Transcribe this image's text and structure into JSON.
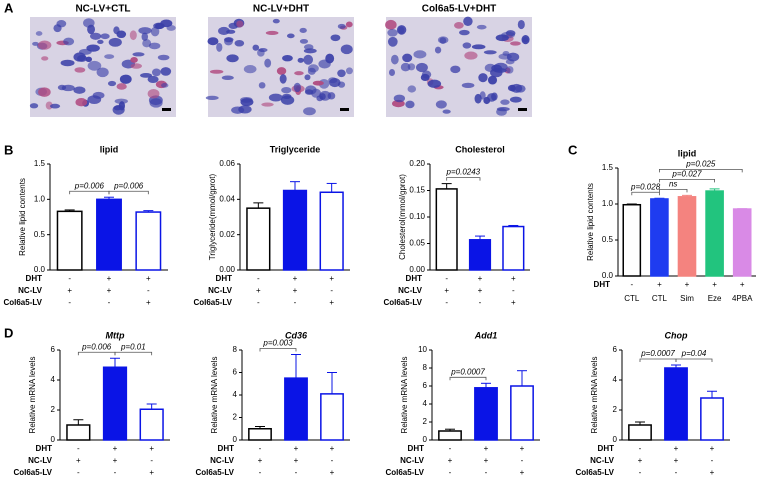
{
  "panels": [
    "A",
    "B",
    "C",
    "D"
  ],
  "micrographs": [
    {
      "title": "NC-LV+CTL"
    },
    {
      "title": "NC-LV+DHT"
    },
    {
      "title": "Col6a5-LV+DHT"
    }
  ],
  "chart_data": [
    {
      "type": "bar",
      "title": "lipid",
      "y_label": "Relative lipid contents",
      "values": [
        0.83,
        1.0,
        0.82
      ],
      "errors": [
        0.02,
        0.03,
        0.02
      ],
      "bar_styles": [
        {
          "fill": "#ffffff",
          "stroke": "#000000"
        },
        {
          "fill": "#0a14e6",
          "stroke": "#0a14e6"
        },
        {
          "fill": "#ffffff",
          "stroke": "#0a14e6"
        }
      ],
      "ylim": [
        0,
        1.5
      ],
      "yticks": [
        {
          "value": 0,
          "label": "0.0"
        },
        {
          "value": 0.5,
          "label": "0.5"
        },
        {
          "value": 1,
          "label": "1.0"
        },
        {
          "value": 1.5,
          "label": "1.5"
        }
      ],
      "conditions": [
        {
          "name": "DHT",
          "signs": [
            "-",
            "+",
            "+"
          ]
        },
        {
          "name": "NC-LV",
          "signs": [
            "+",
            "+",
            "-"
          ]
        },
        {
          "name": "Col6a5-LV",
          "signs": [
            "-",
            "-",
            "+"
          ]
        }
      ],
      "brackets": [
        {
          "label": "p=0.006",
          "from": 0,
          "to": 1
        },
        {
          "label": "p=0.006",
          "from": 1,
          "to": 2
        }
      ]
    },
    {
      "type": "bar",
      "title": "Triglyceride",
      "y_label": "Triglyceride(mmol/gprot)",
      "values": [
        0.035,
        0.045,
        0.044
      ],
      "errors": [
        0.003,
        0.005,
        0.005
      ],
      "bar_styles": [
        {
          "fill": "#ffffff",
          "stroke": "#000000"
        },
        {
          "fill": "#0a14e6",
          "stroke": "#0a14e6"
        },
        {
          "fill": "#ffffff",
          "stroke": "#0a14e6"
        }
      ],
      "ylim": [
        0,
        0.06
      ],
      "yticks": [
        {
          "value": 0,
          "label": "0.00"
        },
        {
          "value": 0.02,
          "label": "0.02"
        },
        {
          "value": 0.04,
          "label": "0.04"
        },
        {
          "value": 0.06,
          "label": "0.06"
        }
      ],
      "conditions": [
        {
          "name": "DHT",
          "signs": [
            "-",
            "+",
            "+"
          ]
        },
        {
          "name": "NC-LV",
          "signs": [
            "+",
            "+",
            "-"
          ]
        },
        {
          "name": "Col6a5-LV",
          "signs": [
            "-",
            "-",
            "+"
          ]
        }
      ],
      "brackets": []
    },
    {
      "type": "bar",
      "title": "Cholesterol",
      "y_label": "Cholesterol(mmol/gprot)",
      "values": [
        0.153,
        0.057,
        0.082
      ],
      "errors": [
        0.01,
        0.007,
        0.002
      ],
      "bar_styles": [
        {
          "fill": "#ffffff",
          "stroke": "#000000"
        },
        {
          "fill": "#0a14e6",
          "stroke": "#0a14e6"
        },
        {
          "fill": "#ffffff",
          "stroke": "#0a14e6"
        }
      ],
      "ylim": [
        0,
        0.2
      ],
      "yticks": [
        {
          "value": 0,
          "label": "0.00"
        },
        {
          "value": 0.05,
          "label": "0.05"
        },
        {
          "value": 0.1,
          "label": "0.10"
        },
        {
          "value": 0.15,
          "label": "0.15"
        },
        {
          "value": 0.2,
          "label": "0.20"
        }
      ],
      "conditions": [
        {
          "name": "DHT",
          "signs": [
            "-",
            "+",
            "+"
          ]
        },
        {
          "name": "NC-LV",
          "signs": [
            "+",
            "+",
            "-"
          ]
        },
        {
          "name": "Col6a5-LV",
          "signs": [
            "-",
            "-",
            "+"
          ]
        }
      ],
      "brackets": [
        {
          "label": "p=0.0243",
          "from": 0,
          "to": 1
        }
      ]
    },
    {
      "type": "bar",
      "title": "lipid",
      "y_label": "Relative lipid contents",
      "categories": [
        "CTL",
        "CTL",
        "Sim",
        "Eze",
        "4PBA"
      ],
      "values": [
        0.99,
        1.07,
        1.1,
        1.18,
        0.93
      ],
      "errors": [
        0.01,
        0.01,
        0.02,
        0.03,
        0.005
      ],
      "bar_styles": [
        {
          "fill": "#ffffff",
          "stroke": "#000000"
        },
        {
          "fill": "#1f3cf0",
          "stroke": "#1f3cf0"
        },
        {
          "fill": "#f4837f",
          "stroke": "#f4837f"
        },
        {
          "fill": "#22c47e",
          "stroke": "#22c47e"
        },
        {
          "fill": "#d98ae6",
          "stroke": "#d98ae6"
        }
      ],
      "ylim": [
        0,
        1.5
      ],
      "yticks": [
        {
          "value": 0,
          "label": "0.0"
        },
        {
          "value": 0.5,
          "label": "0.5"
        },
        {
          "value": 1,
          "label": "1.0"
        },
        {
          "value": 1.5,
          "label": "1.5"
        }
      ],
      "conditions": [
        {
          "name": "DHT",
          "signs": [
            "-",
            "+",
            "+",
            "+",
            "+"
          ]
        }
      ],
      "brackets": [
        {
          "label": "p=0.028",
          "from": 0,
          "to": 1
        },
        {
          "label": "ns",
          "from": 1,
          "to": 2
        },
        {
          "label": "p=0.027",
          "from": 1,
          "to": 3
        },
        {
          "label": "p=0.025",
          "from": 1,
          "to": 4
        }
      ]
    },
    {
      "type": "bar",
      "title": "Mttp",
      "italic": true,
      "y_label": "Relative mRNA levels",
      "values": [
        1.0,
        4.85,
        2.05
      ],
      "errors": [
        0.35,
        0.6,
        0.35
      ],
      "bar_styles": [
        {
          "fill": "#ffffff",
          "stroke": "#000000"
        },
        {
          "fill": "#0a14e6",
          "stroke": "#0a14e6"
        },
        {
          "fill": "#ffffff",
          "stroke": "#0a14e6"
        }
      ],
      "ylim": [
        0,
        6
      ],
      "yticks": [
        0,
        2,
        4,
        6
      ],
      "conditions": [
        {
          "name": "DHT",
          "signs": [
            "-",
            "+",
            "+"
          ]
        },
        {
          "name": "NC-LV",
          "signs": [
            "+",
            "+",
            "-"
          ]
        },
        {
          "name": "Col6a5-LV",
          "signs": [
            "-",
            "-",
            "+"
          ]
        }
      ],
      "brackets": [
        {
          "label": "p=0.006",
          "from": 0,
          "to": 1
        },
        {
          "label": "p=0.01",
          "from": 1,
          "to": 2
        }
      ]
    },
    {
      "type": "bar",
      "title": "Cd36",
      "italic": true,
      "y_label": "Relative mRNA levels",
      "values": [
        1.0,
        5.5,
        4.1
      ],
      "errors": [
        0.2,
        2.1,
        1.9
      ],
      "bar_styles": [
        {
          "fill": "#ffffff",
          "stroke": "#000000"
        },
        {
          "fill": "#0a14e6",
          "stroke": "#0a14e6"
        },
        {
          "fill": "#ffffff",
          "stroke": "#0a14e6"
        }
      ],
      "ylim": [
        0,
        8
      ],
      "yticks": [
        0,
        2,
        4,
        6,
        8
      ],
      "conditions": [
        {
          "name": "DHT",
          "signs": [
            "-",
            "+",
            "+"
          ]
        },
        {
          "name": "NC-LV",
          "signs": [
            "+",
            "+",
            "-"
          ]
        },
        {
          "name": "Col6a5-LV",
          "signs": [
            "-",
            "-",
            "+"
          ]
        }
      ],
      "brackets": [
        {
          "label": "p=0.003",
          "from": 0,
          "to": 1
        }
      ]
    },
    {
      "type": "bar",
      "title": "Add1",
      "italic": true,
      "y_label": "Relative mRNA levels",
      "values": [
        1.0,
        5.8,
        6.0
      ],
      "errors": [
        0.2,
        0.5,
        1.7
      ],
      "bar_styles": [
        {
          "fill": "#ffffff",
          "stroke": "#000000"
        },
        {
          "fill": "#0a14e6",
          "stroke": "#0a14e6"
        },
        {
          "fill": "#ffffff",
          "stroke": "#0a14e6"
        }
      ],
      "ylim": [
        0,
        10
      ],
      "yticks": [
        0,
        2,
        4,
        6,
        8,
        10
      ],
      "conditions": [
        {
          "name": "DHT",
          "signs": [
            "-",
            "+",
            "+"
          ]
        },
        {
          "name": "NC-LV",
          "signs": [
            "+",
            "+",
            "-"
          ]
        },
        {
          "name": "Col6a5-LV",
          "signs": [
            "-",
            "-",
            "+"
          ]
        }
      ],
      "brackets": [
        {
          "label": "p=0.0007",
          "from": 0,
          "to": 1
        }
      ]
    },
    {
      "type": "bar",
      "title": "Chop",
      "italic": true,
      "y_label": "Relative mRNA levels",
      "values": [
        1.0,
        4.8,
        2.8
      ],
      "errors": [
        0.2,
        0.2,
        0.45
      ],
      "bar_styles": [
        {
          "fill": "#ffffff",
          "stroke": "#000000"
        },
        {
          "fill": "#0a14e6",
          "stroke": "#0a14e6"
        },
        {
          "fill": "#ffffff",
          "stroke": "#0a14e6"
        }
      ],
      "ylim": [
        0,
        6
      ],
      "yticks": [
        0,
        2,
        4,
        6
      ],
      "conditions": [
        {
          "name": "DHT",
          "signs": [
            "-",
            "+",
            "+"
          ]
        },
        {
          "name": "NC-LV",
          "signs": [
            "+",
            "+",
            "-"
          ]
        },
        {
          "name": "Col6a5-LV",
          "signs": [
            "-",
            "-",
            "+"
          ]
        }
      ],
      "brackets": [
        {
          "label": "p=0.0007",
          "from": 0,
          "to": 1
        },
        {
          "label": "p=0.04",
          "from": 1,
          "to": 2
        }
      ]
    }
  ]
}
